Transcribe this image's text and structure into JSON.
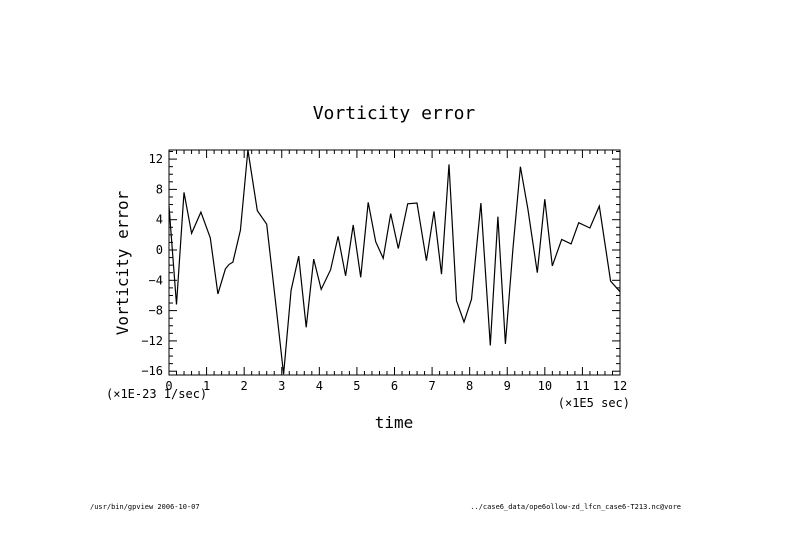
{
  "chart_data": {
    "type": "line",
    "title": "Vorticity error",
    "xlabel": "time",
    "ylabel": "Vorticity error",
    "x_scale_note": "(×1E5 sec)",
    "y_scale_note": "(×1E-23 1/sec)",
    "xlim": [
      0,
      12
    ],
    "ylim": [
      -16.5,
      13.2
    ],
    "x_ticks": [
      0,
      1,
      2,
      3,
      4,
      5,
      6,
      7,
      8,
      9,
      10,
      11,
      12
    ],
    "y_ticks": [
      -16,
      -12,
      -8,
      -4,
      0,
      4,
      8,
      12
    ],
    "x_tick_labels": [
      "0",
      "1",
      "2",
      "3",
      "4",
      "5",
      "6",
      "7",
      "8",
      "9",
      "10",
      "11",
      "12"
    ],
    "y_tick_labels": [
      "−16",
      "−12",
      "−8",
      "−4",
      "0",
      "4",
      "8",
      "12"
    ],
    "grid": false,
    "series": [
      {
        "x": [
          0,
          0.2,
          0.4,
          0.6,
          0.85,
          1.1,
          1.3,
          1.5,
          1.6,
          1.7,
          1.9,
          2.1,
          2.35,
          2.6,
          2.85,
          3.05,
          3.25,
          3.45,
          3.65,
          3.85,
          4.05,
          4.3,
          4.5,
          4.7,
          4.9,
          5.1,
          5.3,
          5.5,
          5.7,
          5.9,
          6.1,
          6.35,
          6.6,
          6.85,
          7.05,
          7.25,
          7.45,
          7.65,
          7.85,
          8.05,
          8.3,
          8.55,
          8.75,
          8.95,
          9.15,
          9.35,
          9.55,
          9.8,
          10,
          10.2,
          10.45,
          10.7,
          10.9,
          11.2,
          11.45,
          11.75,
          12
        ],
        "y": [
          5.8,
          -7.2,
          7.6,
          2.2,
          5,
          1.6,
          -5.8,
          -2.5,
          -1.9,
          -1.6,
          2.6,
          13.2,
          5.2,
          3.4,
          -7.5,
          -16.4,
          -5.3,
          -0.8,
          -10.2,
          -1.2,
          -5.2,
          -2.6,
          1.8,
          -3.4,
          3.3,
          -3.6,
          6.3,
          1.1,
          -1.1,
          4.8,
          0.2,
          6.1,
          6.2,
          -1.4,
          5.1,
          -3.2,
          11.3,
          -6.7,
          -9.5,
          -6.5,
          6.2,
          -12.6,
          4.4,
          -12.4,
          0.1,
          11.0,
          5.4,
          -3.0,
          6.7,
          -2.1,
          1.4,
          0.8,
          3.6,
          2.9,
          5.8,
          -4.1,
          -5.5
        ]
      }
    ]
  },
  "footer": {
    "left": "/usr/bin/gpview  2006-10-07",
    "right": "../case6_data/ope6ollow-zd_lfcn_case6-T213.nc@vore"
  }
}
